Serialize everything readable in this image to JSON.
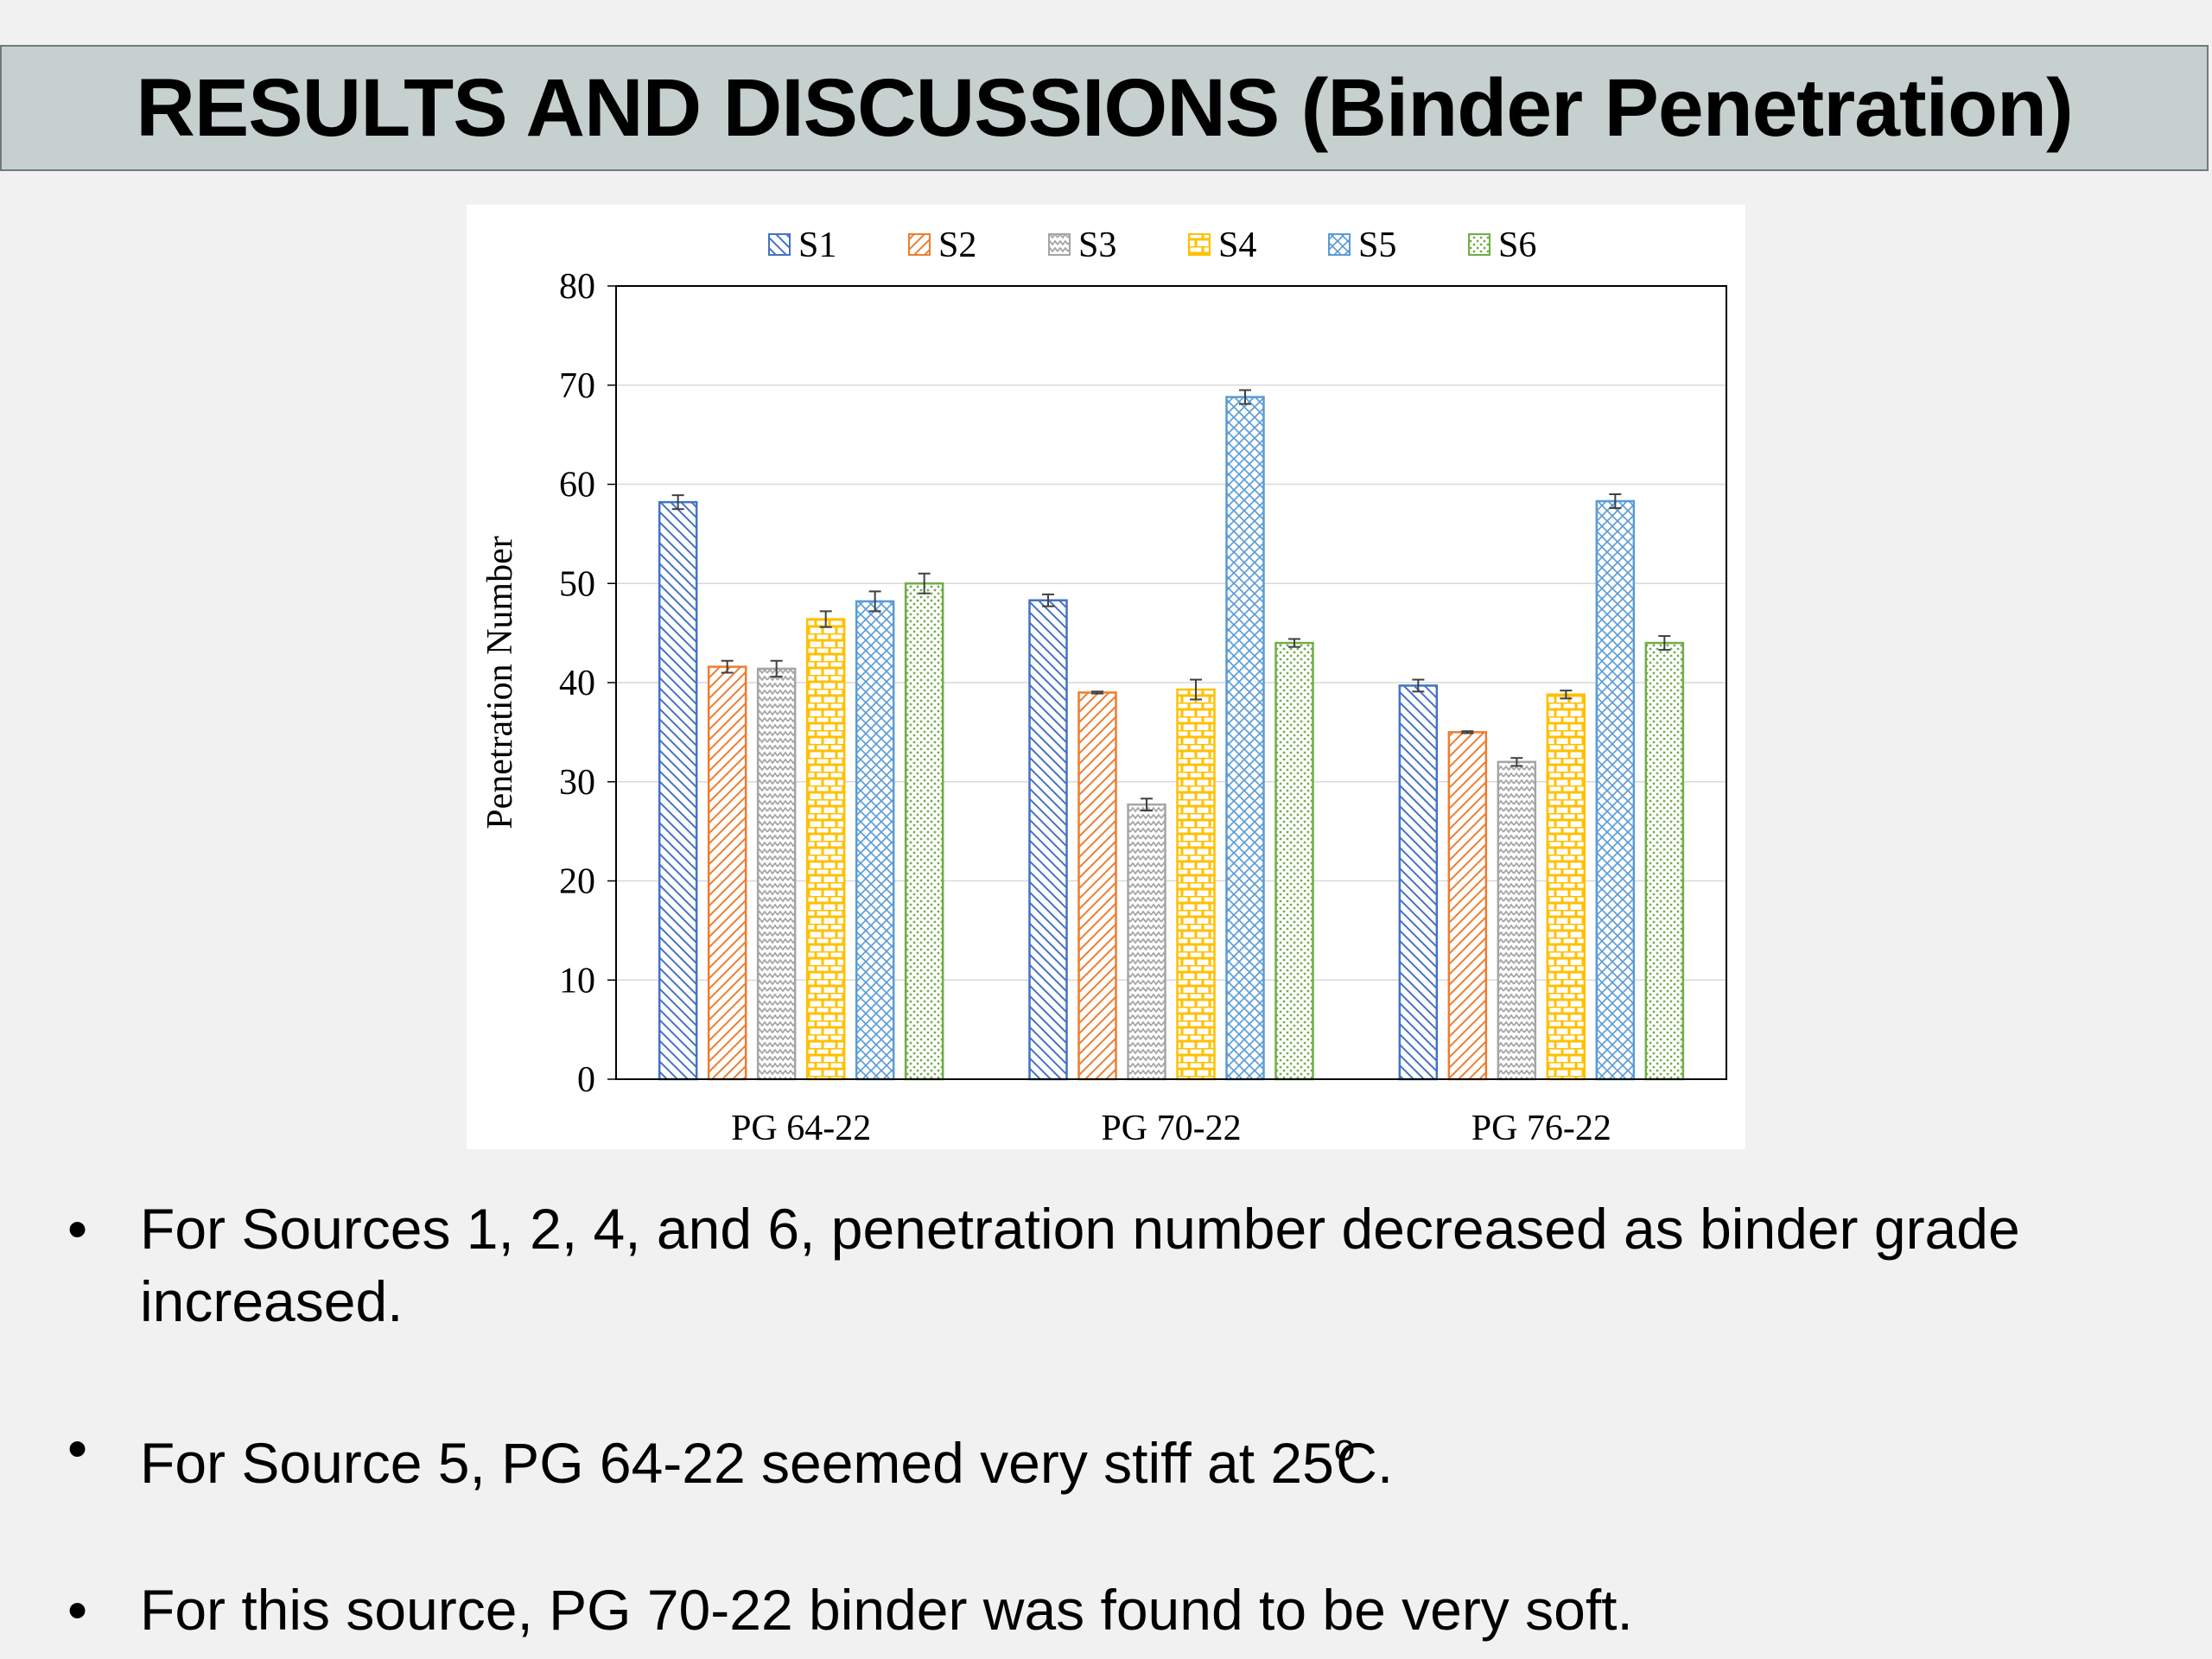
{
  "slide": {
    "title": "RESULTS AND DISCUSSIONS (Binder Penetration)"
  },
  "bullets": [
    {
      "text": "For Sources 1, 2, 4, and 6, penetration number decreased as binder grade increased."
    },
    {
      "text_before": "For Source 5, PG 64-22 seemed very stiff at 25",
      "degree": "o",
      "text_after": "C."
    },
    {
      "text": "For this source, PG 70-22 binder was found to be very soft."
    }
  ],
  "chart_data": {
    "type": "bar",
    "title": "",
    "xlabel": "",
    "ylabel": "Penetration Number",
    "ylim": [
      0,
      80
    ],
    "yticks": [
      0,
      10,
      20,
      30,
      40,
      50,
      60,
      70,
      80
    ],
    "grid": true,
    "legend_position": "top",
    "categories": [
      "PG 64-22",
      "PG 70-22",
      "PG 76-22"
    ],
    "series": [
      {
        "name": "S1",
        "values": [
          58.2,
          48.3,
          39.7
        ],
        "errors": [
          0.7,
          0.6,
          0.6
        ],
        "color": "#4472c4",
        "pattern": "diag-down"
      },
      {
        "name": "S2",
        "values": [
          41.6,
          39.0,
          35.0
        ],
        "errors": [
          0.6,
          0.1,
          0.1
        ],
        "color": "#ed7d31",
        "pattern": "diag-up"
      },
      {
        "name": "S3",
        "values": [
          41.4,
          27.7,
          32.0
        ],
        "errors": [
          0.8,
          0.6,
          0.4
        ],
        "color": "#a5a5a5",
        "pattern": "zigzag"
      },
      {
        "name": "S4",
        "values": [
          46.4,
          39.3,
          38.8
        ],
        "errors": [
          0.8,
          1.0,
          0.4
        ],
        "color": "#ffc000",
        "pattern": "brick"
      },
      {
        "name": "S5",
        "values": [
          48.2,
          68.8,
          58.3
        ],
        "errors": [
          1.0,
          0.7,
          0.7
        ],
        "color": "#5b9bd5",
        "pattern": "diamond"
      },
      {
        "name": "S6",
        "values": [
          50.0,
          44.0,
          44.0
        ],
        "errors": [
          1.0,
          0.4,
          0.7
        ],
        "color": "#70ad47",
        "pattern": "dots"
      }
    ]
  }
}
